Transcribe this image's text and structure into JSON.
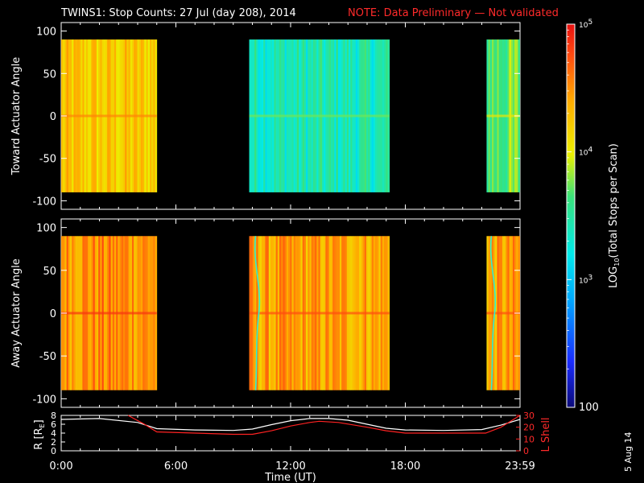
{
  "title": "TWINS1: Stop Counts: 27 Jul (day 208), 2014",
  "note": "NOTE: Data Preliminary — Not validated",
  "footer_date": "5 Aug 14",
  "colors": {
    "note": "#ff2a2a",
    "lshell": "#ff2222",
    "r_line": "#ffffff",
    "background": "#000000"
  },
  "chart_data": [
    {
      "type": "heatmap",
      "ylabel": "Toward Actuator Angle",
      "ylim": [
        -110,
        110
      ],
      "yticks": [
        100,
        50,
        0,
        -50,
        -100
      ],
      "xlim_hours": [
        0,
        24
      ],
      "angle_range": [
        -90,
        90
      ],
      "data_blocks": [
        {
          "start": "0:00",
          "end": "5:00",
          "dominant_level": "yellow-orange",
          "log10_counts": 4.2
        },
        {
          "start": "9:50",
          "end": "17:10",
          "dominant_level": "cyan-blue",
          "log10_counts": 3.4
        },
        {
          "start": "22:15",
          "end": "23:59",
          "dominant_level": "green-cyan",
          "log10_counts": 3.7
        }
      ]
    },
    {
      "type": "heatmap",
      "ylabel": "Away Actuator Angle",
      "ylim": [
        -110,
        110
      ],
      "yticks": [
        100,
        50,
        0,
        -50,
        -100
      ],
      "xlim_hours": [
        0,
        24
      ],
      "angle_range": [
        -90,
        90
      ],
      "data_blocks": [
        {
          "start": "0:00",
          "end": "5:00",
          "dominant_level": "orange",
          "log10_counts": 4.5
        },
        {
          "start": "9:50",
          "end": "17:10",
          "dominant_level": "orange",
          "log10_counts": 4.4
        },
        {
          "start": "22:15",
          "end": "23:59",
          "dominant_level": "orange",
          "log10_counts": 4.4
        }
      ]
    },
    {
      "type": "line",
      "xlabel": "Time (UT)",
      "xticks": [
        "0:00",
        "6:00",
        "12:00",
        "18:00",
        "23:59"
      ],
      "ylabel": "R [RE]",
      "ylabel_right": "L Shell",
      "ylim_left": [
        0,
        8
      ],
      "ylim_right": [
        0,
        30
      ],
      "yticks_left": [
        0,
        2,
        4,
        6,
        8
      ],
      "yticks_right": [
        0,
        10,
        20,
        30
      ],
      "series": [
        {
          "name": "R [RE]",
          "x_hours": [
            0,
            2,
            4,
            5,
            7,
            9,
            10,
            11,
            12,
            13,
            14,
            15,
            16,
            17,
            18,
            20,
            22,
            23,
            24
          ],
          "values": [
            7.1,
            7.3,
            6.4,
            5.0,
            4.7,
            4.6,
            4.9,
            5.9,
            6.8,
            7.3,
            7.3,
            6.9,
            6.0,
            5.1,
            4.7,
            4.6,
            4.8,
            5.8,
            7.1
          ]
        },
        {
          "name": "L Shell",
          "x_hours": [
            3.5,
            4.3,
            5.0,
            7,
            9,
            10,
            11,
            12,
            13,
            13.5,
            14.5,
            16,
            17,
            18,
            20,
            22.2,
            23,
            24
          ],
          "values": [
            30,
            23,
            16,
            15,
            14,
            14,
            17,
            21,
            24,
            25,
            24,
            20,
            17,
            15,
            15,
            15,
            20,
            30
          ]
        }
      ]
    }
  ],
  "colorbar": {
    "label": "LOG10(Total Stops per Scan)",
    "label_prefix": "LOG",
    "label_sub": "10",
    "label_suffix": "(Total Stops per Scan)",
    "ticks": [
      {
        "base": "10",
        "exp": "5",
        "value": 100000
      },
      {
        "base": "10",
        "exp": "4",
        "value": 10000
      },
      {
        "base": "10",
        "exp": "3",
        "value": 1000
      },
      {
        "base": "",
        "exp": "",
        "text": "100",
        "value": 100
      }
    ],
    "range": [
      100,
      100000
    ],
    "scale": "log"
  }
}
